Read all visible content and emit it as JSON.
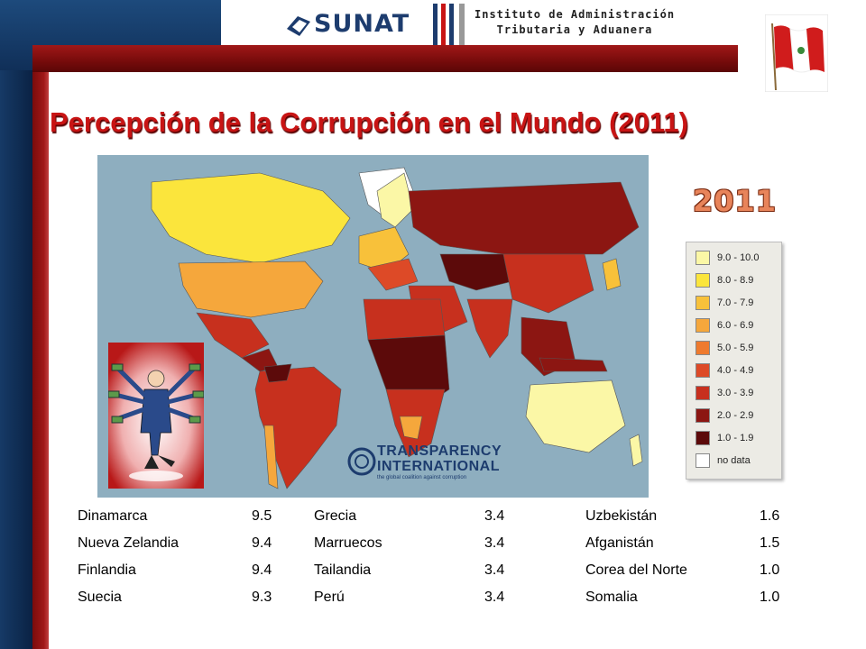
{
  "header": {
    "logo_text": "SUNAT",
    "institute_line1": "Instituto de Administración",
    "institute_line2": "Tributaria y Aduanera"
  },
  "slide": {
    "title": "Percepción de la Corrupción en el Mundo (2011)",
    "year_label": "2011"
  },
  "legend": {
    "items": [
      {
        "label": "9.0 - 10.0",
        "color": "#fbf7a6"
      },
      {
        "label": "8.0 - 8.9",
        "color": "#fbe53c"
      },
      {
        "label": "7.0 - 7.9",
        "color": "#f8c13a"
      },
      {
        "label": "6.0 - 6.9",
        "color": "#f5a73c"
      },
      {
        "label": "5.0 - 5.9",
        "color": "#ee7a2e"
      },
      {
        "label": "4.0 - 4.9",
        "color": "#dd4a27"
      },
      {
        "label": "3.0 - 3.9",
        "color": "#c7301e"
      },
      {
        "label": "2.0 - 2.9",
        "color": "#8c1612"
      },
      {
        "label": "1.0 - 1.9",
        "color": "#5c0a0a"
      },
      {
        "label": "no data",
        "color": "#ffffff"
      }
    ]
  },
  "logo_ti": {
    "line1": "TRANSPARENCY",
    "line2": "INTERNATIONAL",
    "tagline": "the global coalition against corruption"
  },
  "rankings": {
    "col1": [
      {
        "country": "Dinamarca",
        "score": "9.5"
      },
      {
        "country": "Nueva  Zelandia",
        "score": "9.4"
      },
      {
        "country": "Finlandia",
        "score": "9.4"
      },
      {
        "country": "Suecia",
        "score": "9.3"
      }
    ],
    "col2": [
      {
        "country": "Grecia",
        "score": "3.4"
      },
      {
        "country": "Marruecos",
        "score": "3.4"
      },
      {
        "country": "Tailandia",
        "score": "3.4"
      },
      {
        "country": "Perú",
        "score": "3.4"
      }
    ],
    "col3": [
      {
        "country": "Uzbekistán",
        "score": "1.6"
      },
      {
        "country": "Afganistán",
        "score": "1.5"
      },
      {
        "country": "Corea del Norte",
        "score": "1.0"
      },
      {
        "country": "Somalia",
        "score": "1.0"
      }
    ]
  }
}
